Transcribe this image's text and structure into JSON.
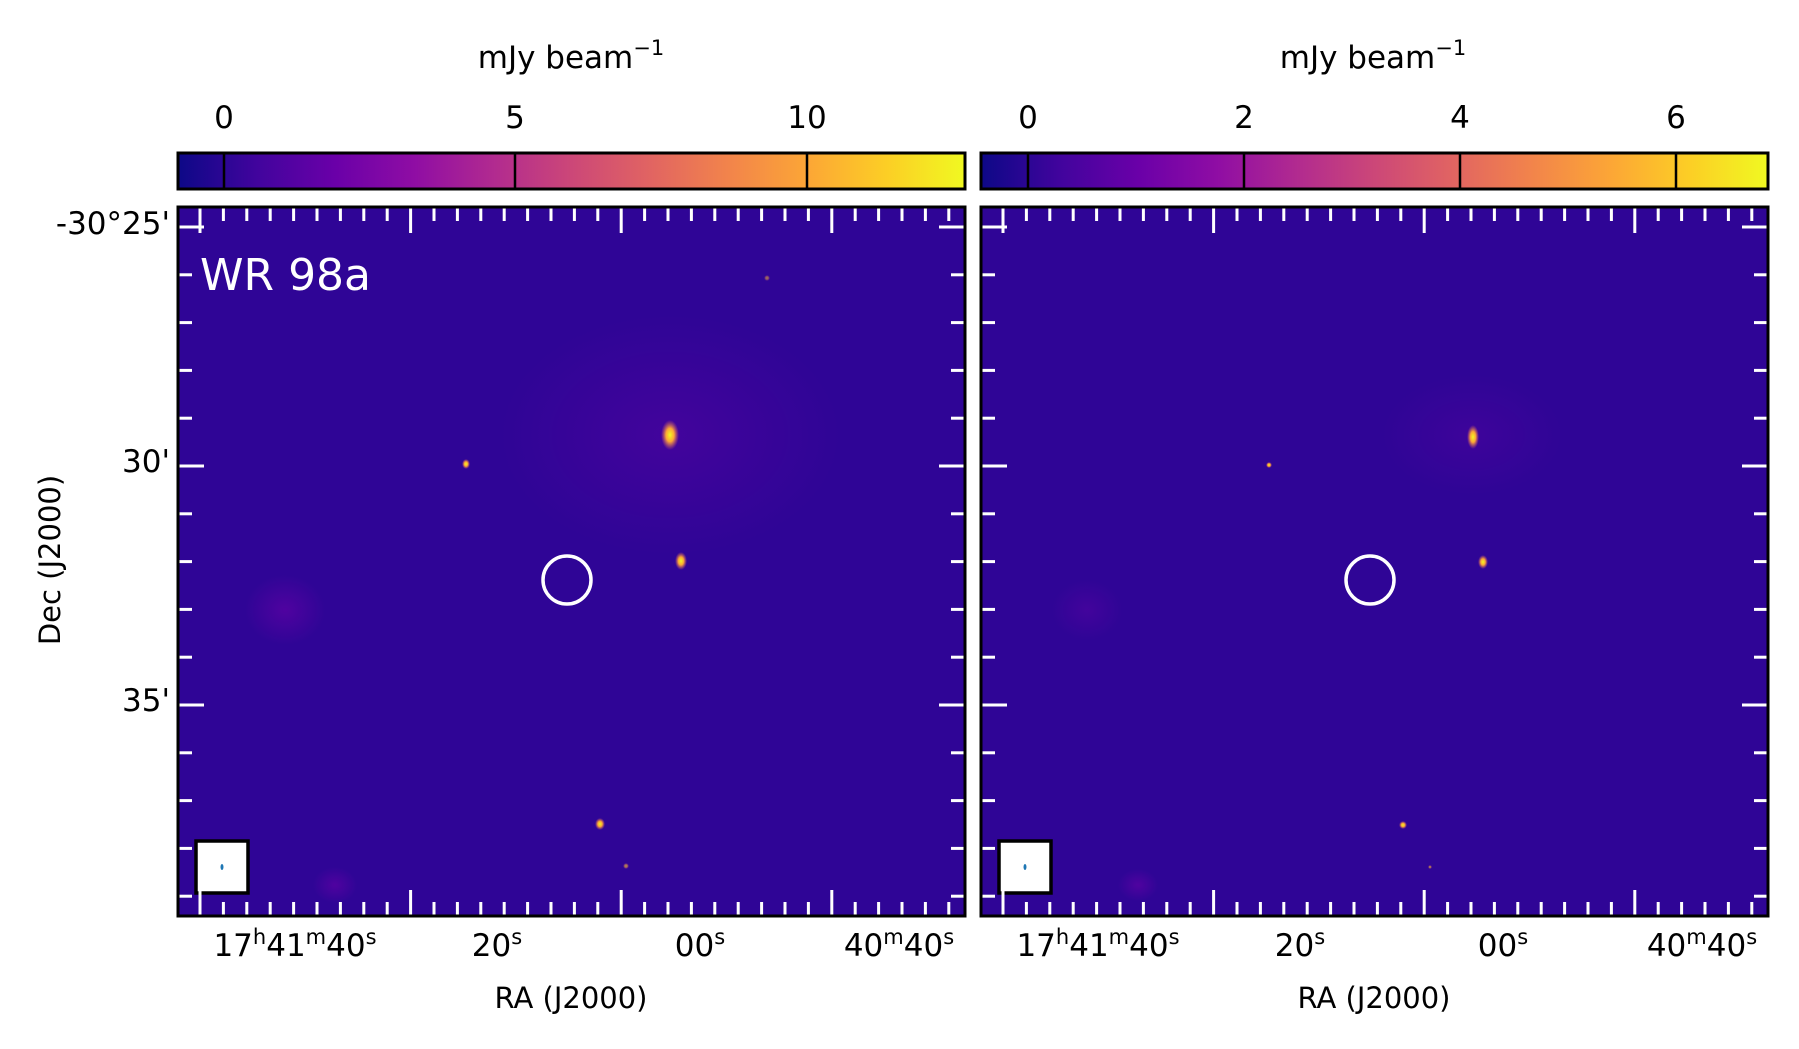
{
  "figure": {
    "source_label": "WR 98a",
    "colorbar_unit": "mJy beam",
    "colorbar_unit_exponent": "−1",
    "x_axis_label": "RA (J2000)",
    "y_axis_label": "Dec (J2000)",
    "colormap": [
      "#0d0887",
      "#41049d",
      "#6a00a8",
      "#8f0da4",
      "#b12a90",
      "#cc4778",
      "#e16462",
      "#f2844b",
      "#fca636",
      "#fcce25",
      "#f0f921"
    ],
    "background_color": "#2f0596",
    "marker_color": "#ffffff"
  },
  "ra_ticks": [
    {
      "h": "17",
      "hu": "h",
      "m": "41",
      "mu": "m",
      "s": "40",
      "su": "s"
    },
    {
      "h": "",
      "hu": "",
      "m": "",
      "mu": "",
      "s": "20",
      "su": "s"
    },
    {
      "h": "",
      "hu": "",
      "m": "",
      "mu": "",
      "s": "00",
      "su": "s"
    },
    {
      "h": "",
      "hu": "",
      "m": "40",
      "mu": "m",
      "s": "40",
      "su": "s"
    }
  ],
  "dec_ticks": [
    "-30°25'",
    "30'",
    "35'"
  ],
  "panels": [
    {
      "name": "left",
      "colorbar_ticks": [
        "0",
        "5",
        "10"
      ],
      "colorbar_values": [
        0,
        5,
        10
      ],
      "colorbar_range": [
        -0.8,
        12.7
      ],
      "show_source_label": true
    },
    {
      "name": "right",
      "colorbar_ticks": [
        "0",
        "2",
        "4",
        "6"
      ],
      "colorbar_values": [
        0,
        2,
        4,
        6
      ],
      "colorbar_range": [
        -0.2,
        6.8
      ],
      "show_source_label": false
    }
  ]
}
